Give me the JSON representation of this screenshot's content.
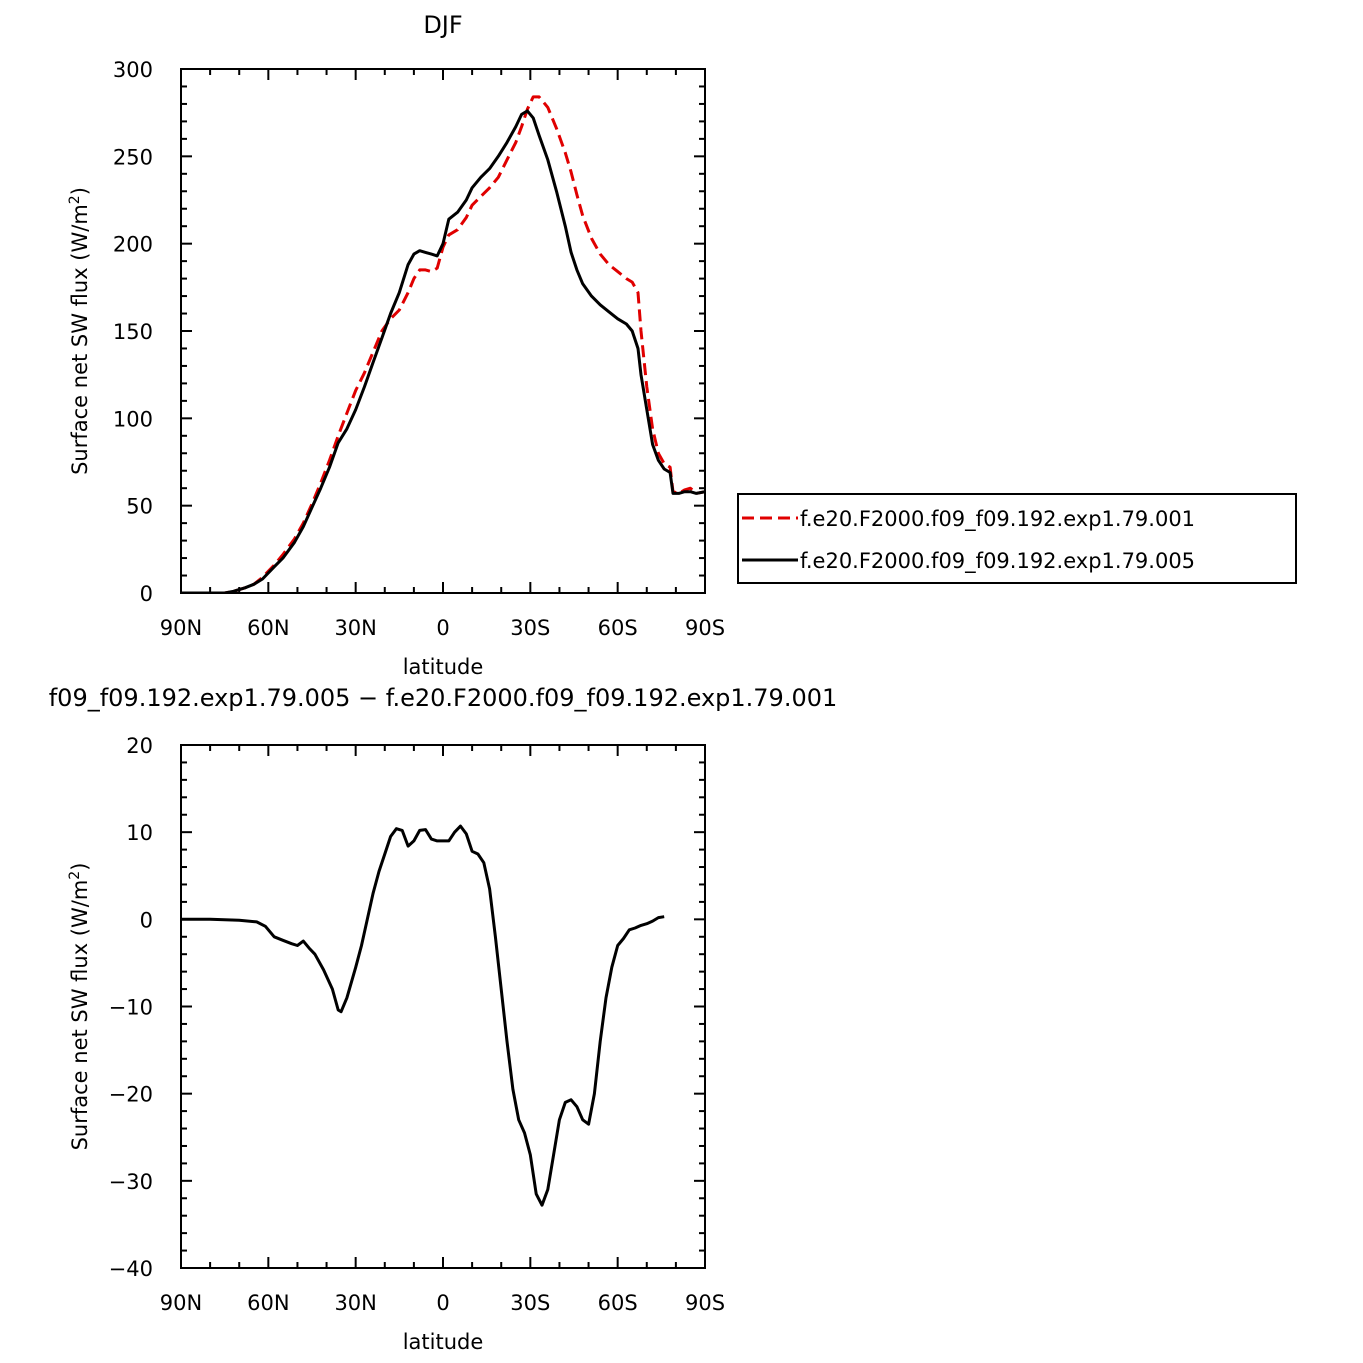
{
  "chart_data": [
    {
      "type": "line",
      "title": "DJF",
      "xlabel": "latitude",
      "ylabel": "Surface net SW flux (W/m²)",
      "ylabel_parts": [
        "Surface net SW flux (W/m",
        "2",
        ")"
      ],
      "xlim": [
        90,
        -90
      ],
      "ylim": [
        0,
        300
      ],
      "x_ticks": [
        90,
        60,
        30,
        0,
        -30,
        -60,
        -90
      ],
      "x_tick_labels": [
        "90N",
        "60N",
        "30N",
        "0",
        "30S",
        "60S",
        "90S"
      ],
      "y_ticks": [
        0,
        50,
        100,
        150,
        200,
        250,
        300
      ],
      "y_tick_labels": [
        "0",
        "50",
        "100",
        "150",
        "200",
        "250",
        "300"
      ],
      "grid": false,
      "legend_position": "right",
      "series": [
        {
          "name": "f.e20.F2000.f09_f09.192.exp1.79.001",
          "color": "#e00000",
          "dash": "dashed",
          "points": [
            [
              90,
              0
            ],
            [
              85,
              0
            ],
            [
              80,
              0
            ],
            [
              75,
              0
            ],
            [
              72,
              1
            ],
            [
              68,
              3
            ],
            [
              65,
              5
            ],
            [
              62,
              9
            ],
            [
              58,
              16
            ],
            [
              55,
              22
            ],
            [
              51,
              31
            ],
            [
              48,
              40
            ],
            [
              45,
              51
            ],
            [
              42,
              63
            ],
            [
              39,
              76
            ],
            [
              36,
              90
            ],
            [
              33,
              103
            ],
            [
              30,
              116
            ],
            [
              27,
              126
            ],
            [
              24,
              138
            ],
            [
              21,
              150
            ],
            [
              18,
              157
            ],
            [
              15,
              162
            ],
            [
              12,
              172
            ],
            [
              10,
              180
            ],
            [
              8,
              185
            ],
            [
              6,
              185
            ],
            [
              4,
              184
            ],
            [
              2,
              186
            ],
            [
              0,
              198
            ],
            [
              -2,
              205
            ],
            [
              -5,
              208
            ],
            [
              -8,
              215
            ],
            [
              -10,
              222
            ],
            [
              -13,
              227
            ],
            [
              -16,
              232
            ],
            [
              -19,
              238
            ],
            [
              -22,
              248
            ],
            [
              -25,
              258
            ],
            [
              -27,
              267
            ],
            [
              -29,
              277
            ],
            [
              -31,
              284
            ],
            [
              -33,
              284
            ],
            [
              -36,
              278
            ],
            [
              -39,
              266
            ],
            [
              -42,
              252
            ],
            [
              -44,
              241
            ],
            [
              -46,
              228
            ],
            [
              -48,
              216
            ],
            [
              -51,
              203
            ],
            [
              -54,
              194
            ],
            [
              -57,
              188
            ],
            [
              -60,
              184
            ],
            [
              -63,
              180
            ],
            [
              -65,
              178
            ],
            [
              -67,
              172
            ],
            [
              -68,
              150
            ],
            [
              -70,
              118
            ],
            [
              -72,
              94
            ],
            [
              -74,
              80
            ],
            [
              -76,
              74
            ],
            [
              -78,
              72
            ],
            [
              -79,
              58
            ],
            [
              -81,
              57
            ],
            [
              -83,
              59
            ],
            [
              -85,
              60
            ],
            [
              -87,
              57
            ],
            [
              -90,
              58
            ]
          ]
        },
        {
          "name": "f.e20.F2000.f09_f09.192.exp1.79.005",
          "color": "#000000",
          "dash": "solid",
          "points": [
            [
              90,
              0
            ],
            [
              85,
              0
            ],
            [
              80,
              0
            ],
            [
              75,
              0
            ],
            [
              72,
              1
            ],
            [
              68,
              3
            ],
            [
              65,
              5
            ],
            [
              62,
              8
            ],
            [
              58,
              15
            ],
            [
              55,
              20
            ],
            [
              51,
              29
            ],
            [
              48,
              38
            ],
            [
              45,
              49
            ],
            [
              42,
              60
            ],
            [
              39,
              72
            ],
            [
              36,
              86
            ],
            [
              33,
              94
            ],
            [
              30,
              105
            ],
            [
              27,
              118
            ],
            [
              24,
              132
            ],
            [
              21,
              146
            ],
            [
              18,
              160
            ],
            [
              15,
              172
            ],
            [
              12,
              188
            ],
            [
              10,
              194
            ],
            [
              8,
              196
            ],
            [
              6,
              195
            ],
            [
              4,
              194
            ],
            [
              2,
              193
            ],
            [
              0,
              200
            ],
            [
              -2,
              214
            ],
            [
              -5,
              218
            ],
            [
              -8,
              225
            ],
            [
              -10,
              232
            ],
            [
              -13,
              238
            ],
            [
              -16,
              243
            ],
            [
              -19,
              250
            ],
            [
              -22,
              258
            ],
            [
              -25,
              267
            ],
            [
              -27,
              274
            ],
            [
              -29,
              276
            ],
            [
              -31,
              272
            ],
            [
              -33,
              262
            ],
            [
              -36,
              248
            ],
            [
              -39,
              230
            ],
            [
              -42,
              210
            ],
            [
              -44,
              195
            ],
            [
              -46,
              185
            ],
            [
              -48,
              177
            ],
            [
              -51,
              170
            ],
            [
              -54,
              165
            ],
            [
              -57,
              161
            ],
            [
              -60,
              157
            ],
            [
              -63,
              154
            ],
            [
              -65,
              150
            ],
            [
              -67,
              140
            ],
            [
              -68,
              125
            ],
            [
              -70,
              105
            ],
            [
              -72,
              85
            ],
            [
              -74,
              76
            ],
            [
              -76,
              71
            ],
            [
              -78,
              69
            ],
            [
              -79,
              57
            ],
            [
              -81,
              57
            ],
            [
              -83,
              58
            ],
            [
              -85,
              58
            ],
            [
              -87,
              57
            ],
            [
              -90,
              58
            ]
          ]
        }
      ]
    },
    {
      "type": "line",
      "title": "f09_f09.192.exp1.79.005 − f.e20.F2000.f09_f09.192.exp1.79.001",
      "xlabel": "latitude",
      "ylabel": "Surface net SW flux (W/m²)",
      "ylabel_parts": [
        "Surface net SW flux (W/m",
        "2",
        ")"
      ],
      "xlim": [
        90,
        -90
      ],
      "ylim": [
        -40,
        20
      ],
      "x_ticks": [
        90,
        60,
        30,
        0,
        -30,
        -60,
        -90
      ],
      "x_tick_labels": [
        "90N",
        "60N",
        "30N",
        "0",
        "30S",
        "60S",
        "90S"
      ],
      "y_ticks": [
        -40,
        -30,
        -20,
        -10,
        0,
        10,
        20
      ],
      "y_tick_labels": [
        "−40",
        "−30",
        "−20",
        "−10",
        "0",
        "10",
        "20"
      ],
      "grid": false,
      "series": [
        {
          "name": "",
          "color": "#000000",
          "dash": "solid",
          "points": [
            [
              90,
              0
            ],
            [
              80,
              0
            ],
            [
              70,
              -0.1
            ],
            [
              64,
              -0.3
            ],
            [
              61,
              -0.8
            ],
            [
              58,
              -2.0
            ],
            [
              55,
              -2.4
            ],
            [
              52,
              -2.8
            ],
            [
              50,
              -3.0
            ],
            [
              48,
              -2.5
            ],
            [
              46,
              -3.3
            ],
            [
              44,
              -4.0
            ],
            [
              41,
              -5.8
            ],
            [
              38,
              -8.0
            ],
            [
              36,
              -10.4
            ],
            [
              35,
              -10.6
            ],
            [
              33,
              -9.0
            ],
            [
              30,
              -5.5
            ],
            [
              28,
              -3.0
            ],
            [
              26,
              0
            ],
            [
              24,
              3
            ],
            [
              22,
              5.5
            ],
            [
              20,
              7.5
            ],
            [
              18,
              9.5
            ],
            [
              16,
              10.4
            ],
            [
              14,
              10.2
            ],
            [
              12,
              8.4
            ],
            [
              10,
              9.0
            ],
            [
              8,
              10.2
            ],
            [
              6,
              10.3
            ],
            [
              4,
              9.2
            ],
            [
              2,
              9.0
            ],
            [
              0,
              9.0
            ],
            [
              -2,
              9.0
            ],
            [
              -4,
              10.0
            ],
            [
              -6,
              10.7
            ],
            [
              -8,
              9.8
            ],
            [
              -10,
              7.8
            ],
            [
              -12,
              7.5
            ],
            [
              -14,
              6.5
            ],
            [
              -16,
              3.5
            ],
            [
              -18,
              -2
            ],
            [
              -20,
              -8
            ],
            [
              -22,
              -14
            ],
            [
              -24,
              -19.5
            ],
            [
              -26,
              -23
            ],
            [
              -28,
              -24.5
            ],
            [
              -30,
              -27
            ],
            [
              -32,
              -31.5
            ],
            [
              -34,
              -32.8
            ],
            [
              -36,
              -31
            ],
            [
              -38,
              -27
            ],
            [
              -40,
              -23
            ],
            [
              -42,
              -21
            ],
            [
              -44,
              -20.7
            ],
            [
              -46,
              -21.5
            ],
            [
              -48,
              -23
            ],
            [
              -50,
              -23.5
            ],
            [
              -52,
              -20
            ],
            [
              -54,
              -14
            ],
            [
              -56,
              -9
            ],
            [
              -58,
              -5.5
            ],
            [
              -60,
              -3
            ],
            [
              -62,
              -2.2
            ],
            [
              -64,
              -1.2
            ],
            [
              -66,
              -1.0
            ],
            [
              -68,
              -0.7
            ],
            [
              -70,
              -0.5
            ],
            [
              -72,
              -0.2
            ],
            [
              -74,
              0.2
            ],
            [
              -76,
              0.3
            ]
          ]
        }
      ]
    }
  ]
}
